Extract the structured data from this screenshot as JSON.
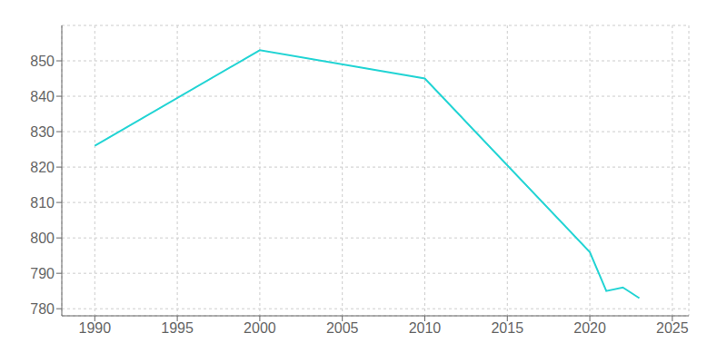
{
  "chart_data": {
    "type": "line",
    "x": [
      1990,
      2000,
      2010,
      2020,
      2021,
      2022,
      2023
    ],
    "values": [
      826,
      853,
      845,
      796,
      785,
      786,
      783
    ],
    "color": "#22d4d4",
    "xlim": [
      1988,
      2026
    ],
    "ylim": [
      778,
      860
    ],
    "xticks": [
      1990,
      1995,
      2000,
      2005,
      2010,
      2015,
      2020,
      2025
    ],
    "yticks": [
      780,
      790,
      800,
      810,
      820,
      830,
      840,
      850
    ],
    "grid": true
  }
}
